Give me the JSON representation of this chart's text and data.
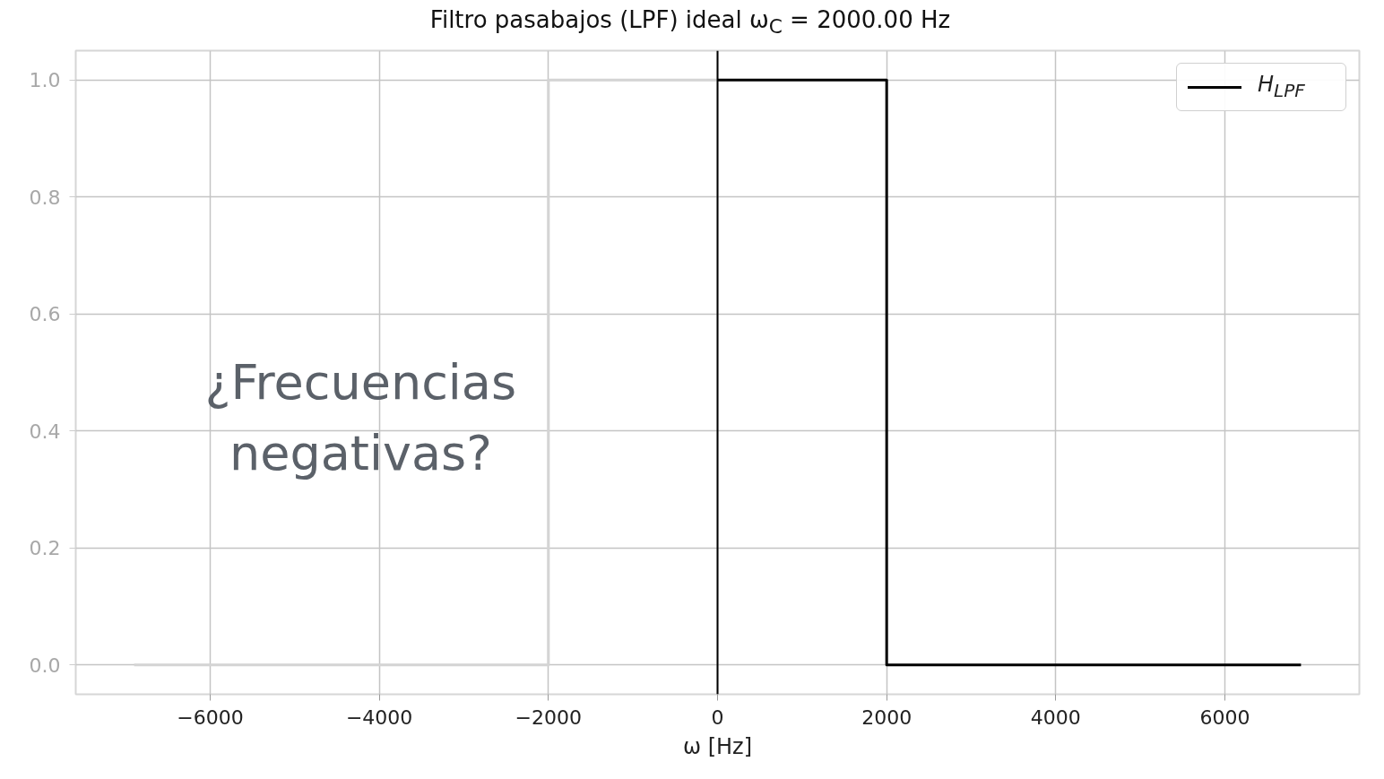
{
  "chart_data": {
    "type": "line",
    "title": "Filtro pasabajos (LPF) ideal ω$_{C}$ = 2000.00 Hz",
    "xlabel": "ω [Hz]",
    "annotations": [
      "¿Frecuencias negativas?"
    ],
    "series": [
      {
        "color": "#d4d4d4",
        "x": [
          -6900,
          -2000,
          -2000,
          0
        ],
        "values": [
          0,
          0,
          1,
          1
        ]
      },
      {
        "name": "H$_{LPF}$",
        "color": "#000000",
        "x": [
          0,
          2000,
          2000,
          6900
        ],
        "values": [
          1,
          1,
          0,
          0
        ]
      }
    ],
    "xlim": [
      -7590,
      7590
    ],
    "ylim": [
      -0.05,
      1.05
    ],
    "xticks": [
      {
        "value": -6000,
        "label": "−6000"
      },
      {
        "value": -4000,
        "label": "−4000"
      },
      {
        "value": -2000,
        "label": "−2000"
      },
      {
        "value": 0,
        "label": "0"
      },
      {
        "value": 2000,
        "label": "2000"
      },
      {
        "value": 4000,
        "label": "4000"
      },
      {
        "value": 6000,
        "label": "6000"
      }
    ],
    "yticks": [
      {
        "value": 0,
        "label": "0.0"
      },
      {
        "value": 0.2,
        "label": "0.2"
      },
      {
        "value": 0.4,
        "label": "0.4"
      },
      {
        "value": 0.6,
        "label": "0.6"
      },
      {
        "value": 0.8,
        "label": "0.8"
      },
      {
        "value": 1,
        "label": "1.0"
      }
    ],
    "grid": true,
    "legend": "top right",
    "ref_lines": [
      {
        "axis": "x",
        "value": 0,
        "color": "#000000"
      }
    ]
  }
}
